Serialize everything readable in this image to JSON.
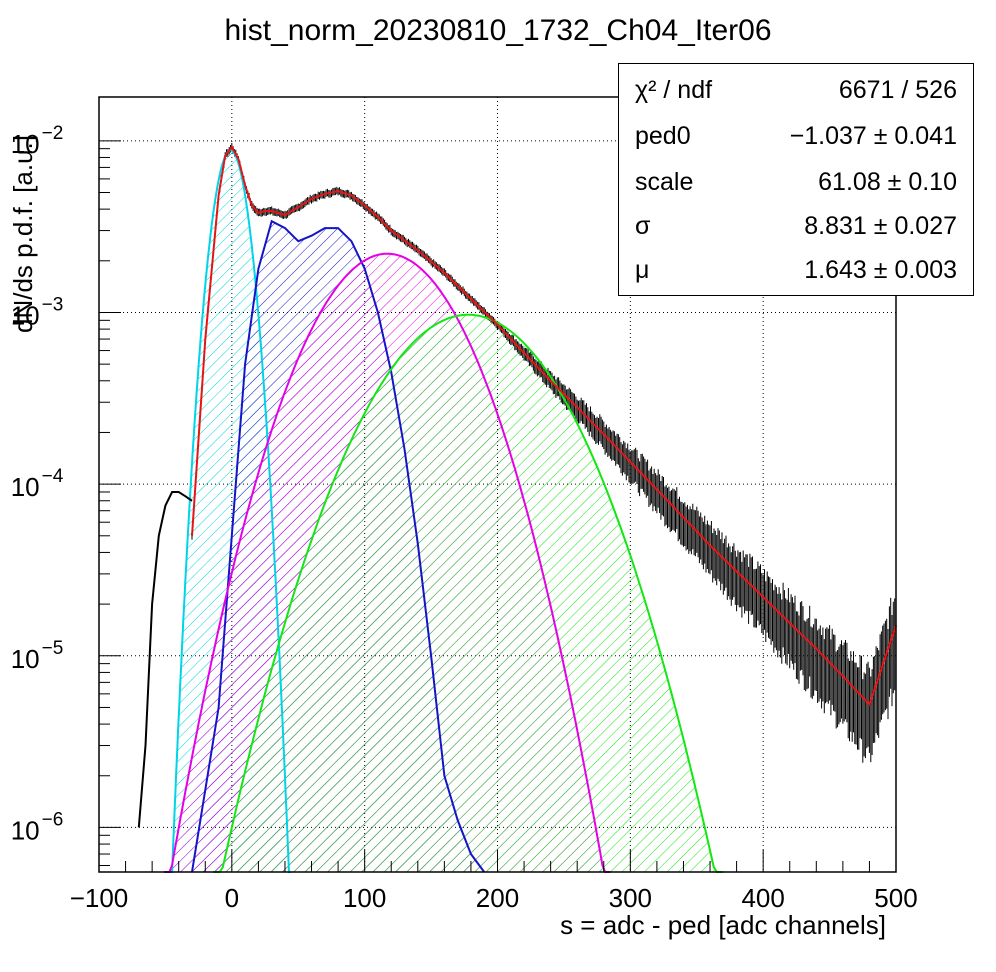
{
  "title": "hist_norm_20230810_1732_Ch04_Iter06",
  "chart_data": {
    "type": "line",
    "title": "hist_norm_20230810_1732_Ch04_Iter06",
    "xlabel": "s = adc - ped [adc channels]",
    "ylabel": "dN/ds p.d.f. [a.u.]",
    "xlim": [
      -100,
      500
    ],
    "ylim": [
      5.5e-07,
      0.018
    ],
    "yscale": "log",
    "grid": true,
    "x_ticks": [
      "−100",
      "0",
      "100",
      "200",
      "300",
      "400",
      "500"
    ],
    "x_tick_values": [
      -100,
      0,
      100,
      200,
      300,
      400,
      500
    ],
    "y_ticks": [
      {
        "base": "10",
        "exp": "−6",
        "value": 1e-06
      },
      {
        "base": "10",
        "exp": "−5",
        "value": 1e-05
      },
      {
        "base": "10",
        "exp": "−4",
        "value": 0.0001
      },
      {
        "base": "10",
        "exp": "−3",
        "value": 0.001
      },
      {
        "base": "10",
        "exp": "−2",
        "value": 0.01
      }
    ],
    "series": [
      {
        "color": "#00d4e6",
        "hatch": true,
        "mu": -1.0,
        "sigma": 10.0,
        "peak": 0.0088
      },
      {
        "color": "#1414c8",
        "hatch": true,
        "x": [
          -30,
          -10,
          0,
          10,
          20,
          30,
          40,
          50,
          60,
          70,
          80,
          90,
          100,
          110,
          120,
          130,
          140,
          150,
          160,
          170,
          180,
          190
        ],
        "y": [
          5e-07,
          5e-06,
          5e-05,
          0.0005,
          0.0018,
          0.0034,
          0.0031,
          0.0026,
          0.0028,
          0.0031,
          0.0031,
          0.0026,
          0.0018,
          0.001,
          0.00045,
          0.00016,
          4.5e-05,
          1e-05,
          2e-06,
          1.1e-06,
          7e-07,
          5.5e-07
        ]
      },
      {
        "color": "#e600e6",
        "hatch": true,
        "mu": 117.0,
        "sigma": 40.0,
        "peak": 0.0022
      },
      {
        "color": "#14e614",
        "hatch": true,
        "mu": 178.0,
        "sigma": 48.0,
        "peak": 0.00097
      },
      {
        "color": "#e61414",
        "hatch": false,
        "x": [
          -30,
          -20,
          -10,
          -5,
          0,
          5,
          10,
          15,
          20,
          25,
          30,
          35,
          40,
          45,
          50,
          60,
          70,
          80,
          90,
          100,
          110,
          120,
          140,
          160,
          180,
          200,
          220,
          240,
          260,
          280,
          300,
          320,
          340,
          360,
          380,
          400,
          420,
          440,
          460,
          480,
          500
        ],
        "y": [
          5e-05,
          0.0007,
          0.0048,
          0.0082,
          0.0092,
          0.0078,
          0.0055,
          0.0042,
          0.0038,
          0.0039,
          0.0039,
          0.0038,
          0.0037,
          0.0039,
          0.0041,
          0.0046,
          0.0049,
          0.0051,
          0.0048,
          0.0042,
          0.0036,
          0.003,
          0.0023,
          0.0017,
          0.0012,
          0.00085,
          0.00058,
          0.0004,
          0.00028,
          0.000195,
          0.000135,
          9.3e-05,
          6.4e-05,
          4.4e-05,
          3.1e-05,
          2.2e-05,
          1.55e-05,
          1.1e-05,
          7.6e-06,
          5.2e-06,
          1.5e-05
        ]
      },
      {
        "color": "#000000",
        "hatch": false,
        "x": [
          -70,
          -65,
          -60,
          -55,
          -50,
          -45,
          -40,
          -35,
          -30
        ],
        "y": [
          1e-06,
          3e-06,
          2e-05,
          5e-05,
          7.5e-05,
          9e-05,
          9e-05,
          8.5e-05,
          8e-05
        ]
      }
    ]
  },
  "stats": {
    "rows": [
      {
        "label": "χ² / ndf",
        "value": "6671 / 526"
      },
      {
        "label": "ped0",
        "value": "−1.037 ± 0.041"
      },
      {
        "label": "scale",
        "value": "61.08 ± 0.10"
      },
      {
        "label": "σ",
        "value": "8.831 ± 0.027"
      },
      {
        "label": "μ",
        "value": "1.643 ± 0.003"
      }
    ]
  }
}
